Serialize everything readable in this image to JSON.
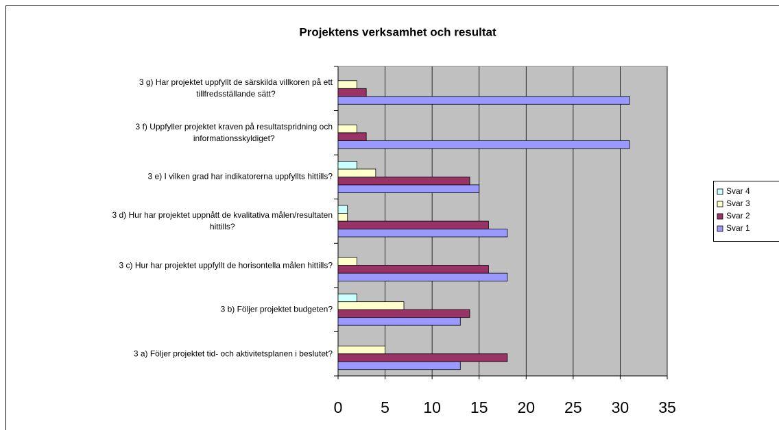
{
  "chart_data": {
    "type": "barh",
    "title": "Projektens verksamhet och resultat",
    "categories": [
      "3 a) Följer projektet tid- och aktivitetsplanen i beslutet?",
      "3 b) Följer projektet budgeten?",
      "3 c) Hur har projektet uppfyllt de horisontella målen hittills?",
      "3 d) Hur har projektet uppnått de kvalitativa målen/resultaten\nhittills?",
      "3 e) I vilken grad har indikatorerna uppfyllts hittills?",
      "3 f) Uppfyller projektet kraven på resultatspridning och\ninformationsskyldiget?",
      "3 g) Har projektet uppfyllt de särskilda villkoren på ett\ntillfredsställande sätt?"
    ],
    "series": [
      {
        "name": "Svar 1",
        "color": "#9999ff",
        "values": [
          13,
          13,
          18,
          18,
          15,
          31,
          31
        ]
      },
      {
        "name": "Svar 2",
        "color": "#993366",
        "values": [
          18,
          14,
          16,
          16,
          14,
          3,
          3
        ]
      },
      {
        "name": "Svar 3",
        "color": "#ffffcc",
        "values": [
          5,
          7,
          2,
          1,
          4,
          2,
          2
        ]
      },
      {
        "name": "Svar 4",
        "color": "#ccffff",
        "values": [
          0,
          2,
          0,
          1,
          2,
          0,
          0
        ]
      }
    ],
    "xlim": [
      0,
      35
    ],
    "xticks": [
      0,
      5,
      10,
      15,
      20,
      25,
      30,
      35
    ],
    "grid": true,
    "plot_background": "#c0c0c0",
    "legend": "right"
  }
}
